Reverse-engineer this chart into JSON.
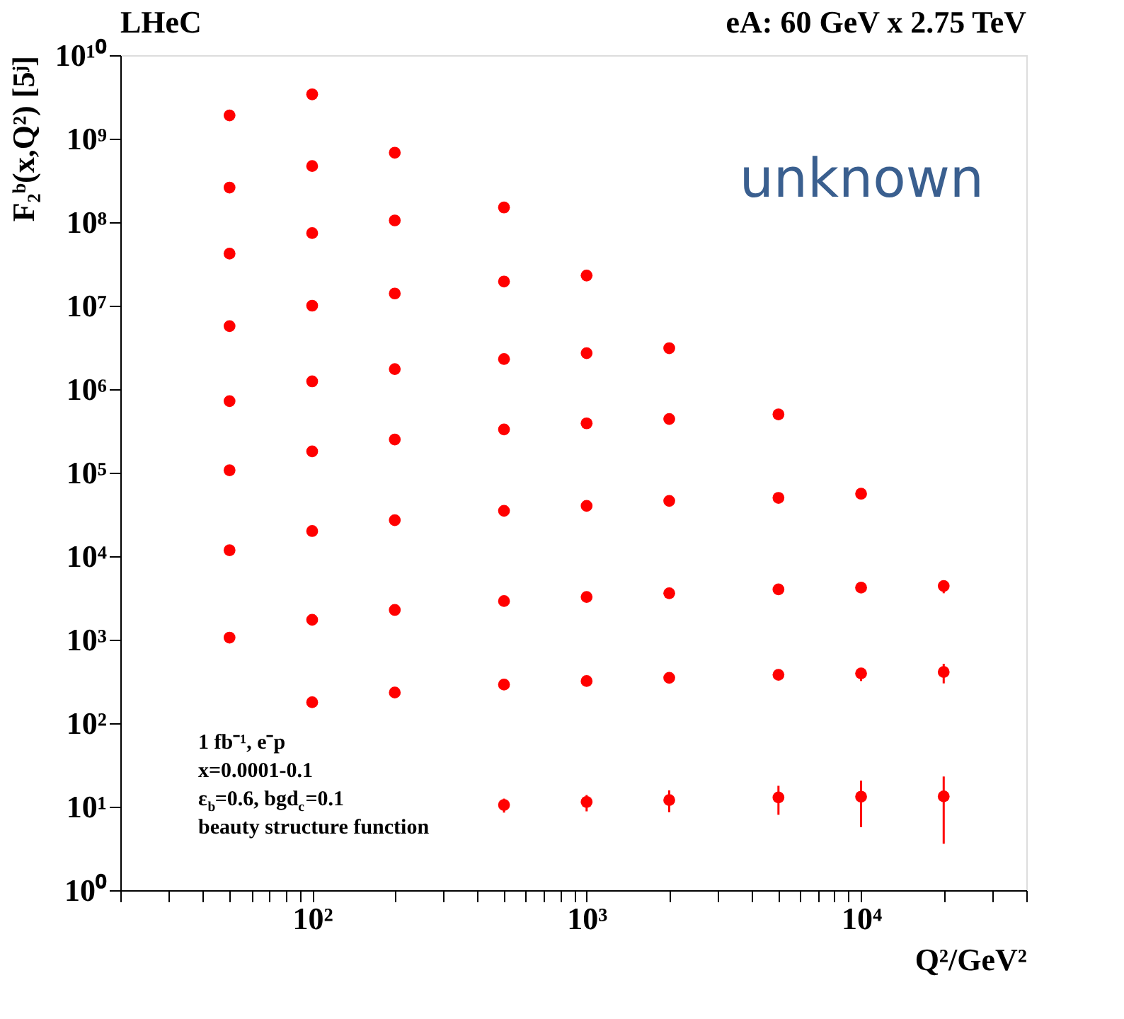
{
  "chart_data": {
    "type": "scatter",
    "xlabel": "Q²/GeV²",
    "ylabel": "F₂ᵇ(x,Q²) [5ʲ]",
    "annotations": [
      "LHeC",
      "eA: 60 GeV x 2.75 TeV",
      "unknown",
      "1 fb⁻¹, e⁻p",
      "x=0.0001-0.1",
      "ε$_{b}$=0.6, bgd$_{c}$=0.1",
      "beauty structure function"
    ],
    "series": [
      {
        "color": "#ff0000",
        "x": [
          50,
          50,
          50,
          50,
          50,
          50,
          50,
          50,
          100,
          100,
          100,
          100,
          100,
          100,
          100,
          100,
          100,
          200,
          200,
          200,
          200,
          200,
          200,
          200,
          200,
          500,
          500,
          500,
          500,
          500,
          500,
          500,
          500,
          1000,
          1000,
          1000,
          1000,
          1000,
          1000,
          1000,
          2000,
          2000,
          2000,
          2000,
          2000,
          2000,
          5000,
          5000,
          5000,
          5000,
          5000,
          10000,
          10000,
          10000,
          10000,
          20000,
          20000,
          20000
        ],
        "values": [
          1900000000.0,
          260000000.0,
          42000000.0,
          5700000.0,
          720000.0,
          107000.0,
          11800.0,
          1060,
          3400000000.0,
          470000000.0,
          74000000.0,
          10000000.0,
          1240000.0,
          180000.0,
          20000.0,
          1730,
          178,
          680000000.0,
          105000000.0,
          14000000.0,
          1740000.0,
          250000.0,
          27000.0,
          2270,
          233,
          150000000.0,
          19500000.0,
          2300000.0,
          330000.0,
          35000.0,
          2900,
          290,
          10.5,
          23000000.0,
          2700000.0,
          390000.0,
          40000.0,
          3250,
          320,
          11.4,
          3100000.0,
          440000.0,
          46000.0,
          3600,
          350,
          12,
          500000.0,
          50000.0,
          4000,
          380,
          12.9,
          56000.0,
          4200,
          395,
          13.2,
          4400,
          410,
          13.3
        ],
        "errors": [
          null,
          null,
          null,
          null,
          null,
          null,
          null,
          null,
          null,
          null,
          null,
          null,
          null,
          null,
          null,
          null,
          null,
          null,
          null,
          null,
          null,
          null,
          null,
          null,
          null,
          null,
          null,
          null,
          null,
          null,
          null,
          null,
          [
            8.5,
            12.5
          ],
          null,
          null,
          null,
          null,
          null,
          null,
          [
            8.8,
            13.8
          ],
          null,
          null,
          null,
          null,
          null,
          [
            8.6,
            15.7
          ],
          null,
          null,
          null,
          null,
          [
            8,
            17.8
          ],
          null,
          null,
          [
            320,
            455
          ],
          [
            5.7,
            20.5
          ],
          [
            3600,
            5100
          ],
          [
            300,
            515
          ],
          [
            3.6,
            23
          ]
        ]
      }
    ],
    "marker": "circle",
    "xlim": [
      20,
      40000
    ],
    "ylim": [
      1,
      10000000000.0
    ],
    "xticks": [
      {
        "value": 20,
        "label": null
      },
      {
        "value": 30,
        "label": null
      },
      {
        "value": 40,
        "label": null
      },
      {
        "value": 50,
        "label": null
      },
      {
        "value": 60,
        "label": null
      },
      {
        "value": 70,
        "label": null
      },
      {
        "value": 80,
        "label": null
      },
      {
        "value": 90,
        "label": null
      },
      {
        "value": 100,
        "label": "10²"
      },
      {
        "value": 200,
        "label": null
      },
      {
        "value": 300,
        "label": null
      },
      {
        "value": 400,
        "label": null
      },
      {
        "value": 500,
        "label": null
      },
      {
        "value": 600,
        "label": null
      },
      {
        "value": 700,
        "label": null
      },
      {
        "value": 800,
        "label": null
      },
      {
        "value": 900,
        "label": null
      },
      {
        "value": 1000,
        "label": "10³"
      },
      {
        "value": 2000,
        "label": null
      },
      {
        "value": 3000,
        "label": null
      },
      {
        "value": 4000,
        "label": null
      },
      {
        "value": 5000,
        "label": null
      },
      {
        "value": 6000,
        "label": null
      },
      {
        "value": 7000,
        "label": null
      },
      {
        "value": 8000,
        "label": null
      },
      {
        "value": 9000,
        "label": null
      },
      {
        "value": 10000,
        "label": "10⁴"
      },
      {
        "value": 20000,
        "label": null
      },
      {
        "value": 30000,
        "label": null
      },
      {
        "value": 40000,
        "label": null
      }
    ],
    "yticks": [
      {
        "value": 1,
        "label": "10⁰"
      },
      {
        "value": 10,
        "label": "10¹"
      },
      {
        "value": 100,
        "label": "10²"
      },
      {
        "value": 1000,
        "label": "10³"
      },
      {
        "value": 10000,
        "label": "10⁴"
      },
      {
        "value": 100000,
        "label": "10⁵"
      },
      {
        "value": 1000000,
        "label": "10⁶"
      },
      {
        "value": 10000000,
        "label": "10⁷"
      },
      {
        "value": 100000000,
        "label": "10⁸"
      },
      {
        "value": 1000000000,
        "label": "10⁹"
      },
      {
        "value": 10000000000,
        "label": "10¹⁰"
      }
    ],
    "log": "xy",
    "grid": false
  }
}
